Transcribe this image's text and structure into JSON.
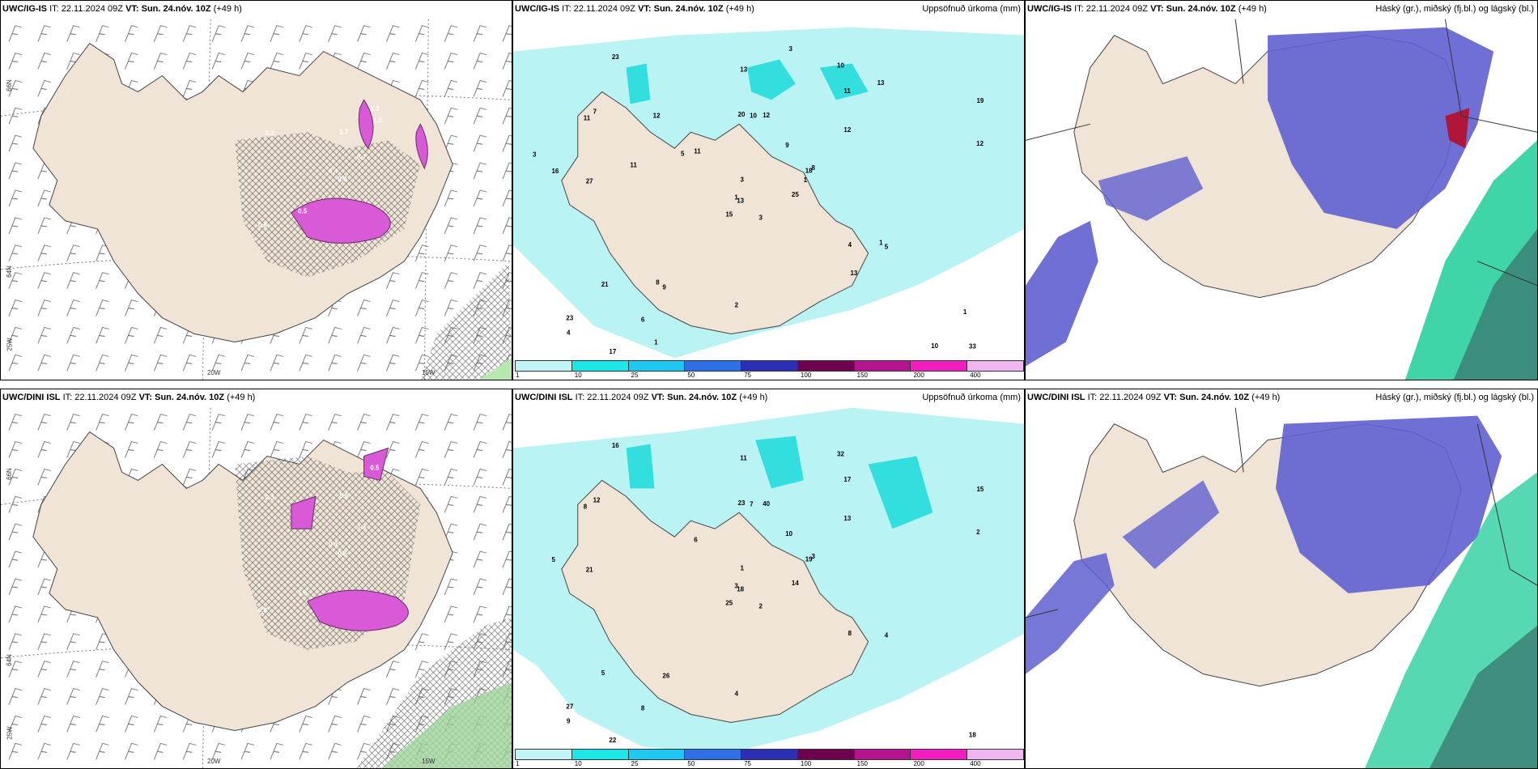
{
  "panels": {
    "top": {
      "left": {
        "model": "UWC/IG-IS",
        "it_label": "IT:",
        "it_value": "22.11.2024 09Z",
        "vt_label": "VT:",
        "vt_value": "Sun. 24.nóv. 10Z",
        "lead": "(+49 h)",
        "right_title": ""
      },
      "middle": {
        "model": "UWC/IG-IS",
        "it_label": "IT:",
        "it_value": "22.11.2024 09Z",
        "vt_label": "VT:",
        "vt_value": "Sun. 24.nóv. 10Z",
        "lead": "(+49 h)",
        "right_title": "Uppsöfnuð úrkoma (mm)"
      },
      "right": {
        "model": "UWC/IG-IS",
        "it_label": "IT:",
        "it_value": "22.11.2024 09Z",
        "vt_label": "VT:",
        "vt_value": "Sun. 24.nóv. 10Z",
        "lead": "(+49 h)",
        "right_title": "Háský (gr.), miðský (fj.bl.) og lágský (bl.)"
      }
    },
    "bottom": {
      "left": {
        "model": "UWC/DINI ISL",
        "it_label": "IT:",
        "it_value": "22.11.2024 09Z",
        "vt_label": "VT:",
        "vt_value": "Sun. 24.nóv. 10Z",
        "lead": "(+49 h)",
        "right_title": ""
      },
      "middle": {
        "model": "UWC/DINI ISL",
        "it_label": "IT:",
        "it_value": "22.11.2024 09Z",
        "vt_label": "VT:",
        "vt_value": "Sun. 24.nóv. 10Z",
        "lead": "(+49 h)",
        "right_title": "Uppsöfnuð úrkoma (mm)"
      },
      "right": {
        "model": "UWC/DINI ISL",
        "it_label": "IT:",
        "it_value": "22.11.2024 09Z",
        "vt_label": "VT:",
        "vt_value": "Sun. 24.nóv. 10Z",
        "lead": "(+49 h)",
        "right_title": "Háský (gr.), miðský (fj.bl.) og lágský (bl.)"
      }
    }
  },
  "axis_labels": {
    "lat66": "66N",
    "lat64": "64N",
    "lon20": "20W",
    "lon15": "15W",
    "lon25": "25W"
  },
  "colorbar": {
    "ticks": [
      "1",
      "10",
      "25",
      "50",
      "75",
      "100",
      "150",
      "200",
      "400"
    ],
    "colors": [
      "#bff5f5",
      "#1ee6e6",
      "#1ec8f0",
      "#2f6fe6",
      "#2a2fb4",
      "#6e0050",
      "#b4148c",
      "#f01ebe",
      "#f0b4f0"
    ]
  },
  "precip_values_top": [
    "3",
    "11",
    "13",
    "23",
    "18",
    "9",
    "10",
    "12",
    "11",
    "25",
    "23",
    "33",
    "27",
    "19",
    "15",
    "12",
    "17",
    "20",
    "9",
    "21",
    "11",
    "4",
    "6",
    "10",
    "8",
    "5",
    "7",
    "13",
    "16",
    "4",
    "12",
    "1",
    "2",
    "3",
    "12",
    "13",
    "8",
    "10",
    "1",
    "1",
    "3",
    "5",
    "11",
    "13",
    "1",
    "3",
    "1"
  ],
  "precip_values_bottom": [
    "2",
    "8",
    "18",
    "27",
    "19",
    "26",
    "32",
    "40",
    "17",
    "14",
    "16",
    "18",
    "21",
    "15",
    "25",
    "13",
    "22",
    "23",
    "10",
    "5",
    "6",
    "9",
    "8",
    "7",
    "3",
    "4",
    "12",
    "11",
    "5",
    "8",
    "2",
    "3",
    "4",
    "1"
  ],
  "snow_values_top": [
    "0.8",
    "0.3",
    "0.4",
    "0.9",
    "0.7",
    "0.5",
    "1.3",
    "1.2",
    "1.0"
  ],
  "snow_values_bottom": [
    "0.8",
    "0.3",
    "0.4",
    "0.9",
    "1.3",
    "1.0",
    "0.5",
    "0.6"
  ],
  "colors": {
    "land": "#efe4d6",
    "precip_light": "#b9f3f3",
    "precip_mid": "#33dede",
    "snow": "#d85ad6",
    "cloud_low": "#5f5fd0",
    "cloud_mid": "#1ecc9a",
    "cloud_high": "#6fd8ff"
  }
}
